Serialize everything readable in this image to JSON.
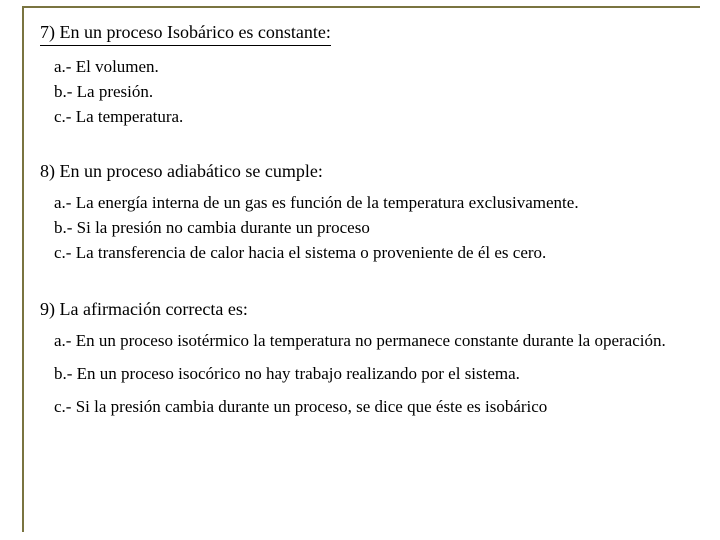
{
  "colors": {
    "frame_border": "#7a7440",
    "background": "#ffffff",
    "text": "#000000"
  },
  "typography": {
    "font_family": "Times New Roman",
    "title_size_pt": 18,
    "option_size_pt": 17
  },
  "questions": [
    {
      "title": "7) En un proceso Isobárico es constante:",
      "options": [
        "a.- El volumen.",
        "b.- La presión.",
        "c.- La temperatura."
      ]
    },
    {
      "title": "8) En un proceso adiabático se cumple:",
      "options": [
        "a.- La energía interna de un gas es función de la temperatura exclusivamente.",
        "b.- Si la presión no cambia durante un proceso",
        "c.- La transferencia de calor hacia el sistema o proveniente de él es cero."
      ]
    },
    {
      "title": "9) La afirmación correcta es:",
      "options": [
        "a.- En un proceso isotérmico la temperatura no permanece constante durante la operación.",
        "b.- En un proceso isocórico no hay trabajo realizando por el sistema.",
        "c.- Si la presión cambia durante un proceso, se dice que éste es isobárico"
      ]
    }
  ]
}
